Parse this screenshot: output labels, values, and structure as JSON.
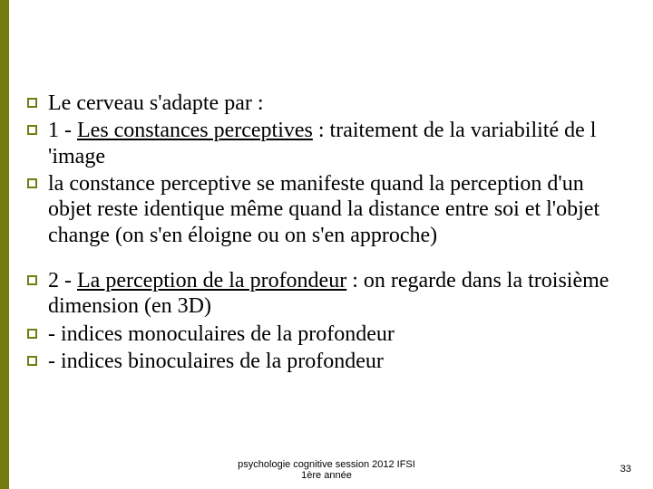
{
  "accent_color": "#747B13",
  "bullets_group1": [
    {
      "pre": "Le cerveau s'adapte par :",
      "u": "",
      "post": ""
    },
    {
      "pre": "1 - ",
      "u": "Les constances perceptives",
      "post": " : traitement de la variabilité de l 'image"
    },
    {
      "pre": "la constance perceptive se manifeste quand la perception d'un objet reste identique même quand la distance entre soi et l'objet change (on s'en éloigne ou on s'en approche)",
      "u": "",
      "post": ""
    }
  ],
  "bullets_group2": [
    {
      "pre": "2 - ",
      "u": "La perception de la profondeur",
      "post": " : on regarde dans la troisième dimension (en 3D)"
    },
    {
      "pre": "- indices monoculaires de la profondeur",
      "u": "",
      "post": ""
    },
    {
      "pre": "- indices binoculaires de la profondeur",
      "u": "",
      "post": ""
    }
  ],
  "footer_line1": "psychologie cognitive session 2012 IFSI",
  "footer_line2": "1ère année",
  "page_number": "33"
}
